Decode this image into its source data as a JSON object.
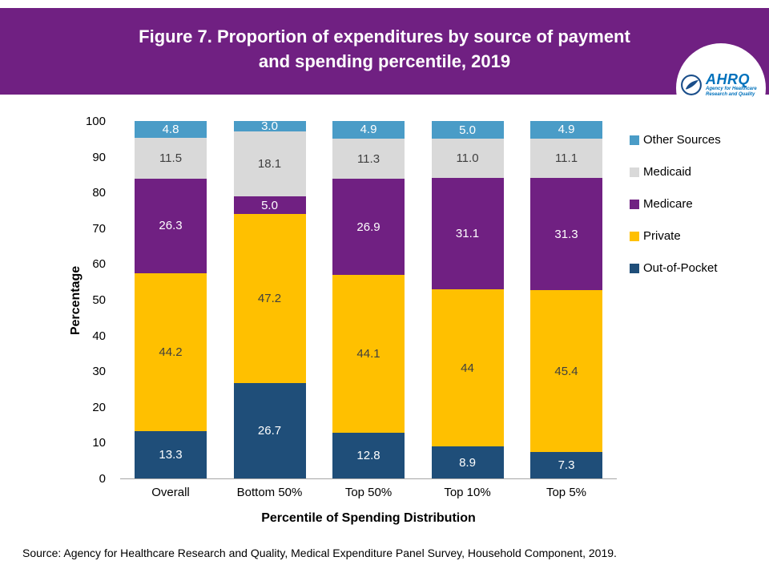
{
  "header": {
    "title_line1": "Figure 7. Proportion of expenditures by source of payment",
    "title_line2": "and spending percentile, 2019",
    "bg_color": "#702082",
    "logo": {
      "ahrq_text": "AHRQ",
      "ahrq_subtext": "Agency for Healthcare Research and Quality"
    }
  },
  "chart_data": {
    "type": "bar",
    "stacked": true,
    "title": "Figure 7. Proportion of expenditures by source of payment and spending percentile, 2019",
    "categories": [
      "Overall",
      "Bottom 50%",
      "Top 50%",
      "Top 10%",
      "Top 5%"
    ],
    "series": [
      {
        "name": "Out-of-Pocket",
        "color": "#1f4e79",
        "label_color": "#ffffff",
        "values": [
          13.3,
          26.7,
          12.8,
          8.9,
          7.3
        ],
        "labels": [
          "13.3",
          "26.7",
          "12.8",
          "8.9",
          "7.3"
        ]
      },
      {
        "name": "Private",
        "color": "#ffc000",
        "label_color": "#3f3f3f",
        "values": [
          44.2,
          47.2,
          44.1,
          44,
          45.4
        ],
        "labels": [
          "44.2",
          "47.2",
          "44.1",
          "44",
          "45.4"
        ]
      },
      {
        "name": "Medicare",
        "color": "#702082",
        "label_color": "#ffffff",
        "values": [
          26.3,
          5.0,
          26.9,
          31.1,
          31.3
        ],
        "labels": [
          "26.3",
          "5.0",
          "26.9",
          "31.1",
          "31.3"
        ]
      },
      {
        "name": "Medicaid",
        "color": "#d9d9d9",
        "label_color": "#3f3f3f",
        "values": [
          11.5,
          18.1,
          11.3,
          11.0,
          11.1
        ],
        "labels": [
          "11.5",
          "18.1",
          "11.3",
          "11.0",
          "11.1"
        ]
      },
      {
        "name": "Other Sources",
        "color": "#4a9cc7",
        "label_color": "#ffffff",
        "values": [
          4.8,
          3.0,
          4.9,
          5.0,
          4.9
        ],
        "labels": [
          "4.8",
          "3.0",
          "4.9",
          "5.0",
          "4.9"
        ]
      }
    ],
    "xlabel": "Percentile of Spending Distribution",
    "ylabel": "Percentage",
    "ylim": [
      0,
      100
    ],
    "yticks": [
      0,
      10,
      20,
      30,
      40,
      50,
      60,
      70,
      80,
      90,
      100
    ],
    "grid": false,
    "legend_position": "right",
    "legend_order": [
      "Other Sources",
      "Medicaid",
      "Medicare",
      "Private",
      "Out-of-Pocket"
    ]
  },
  "footer": {
    "source": "Source: Agency for Healthcare Research and Quality, Medical Expenditure Panel Survey, Household Component, 2019."
  }
}
